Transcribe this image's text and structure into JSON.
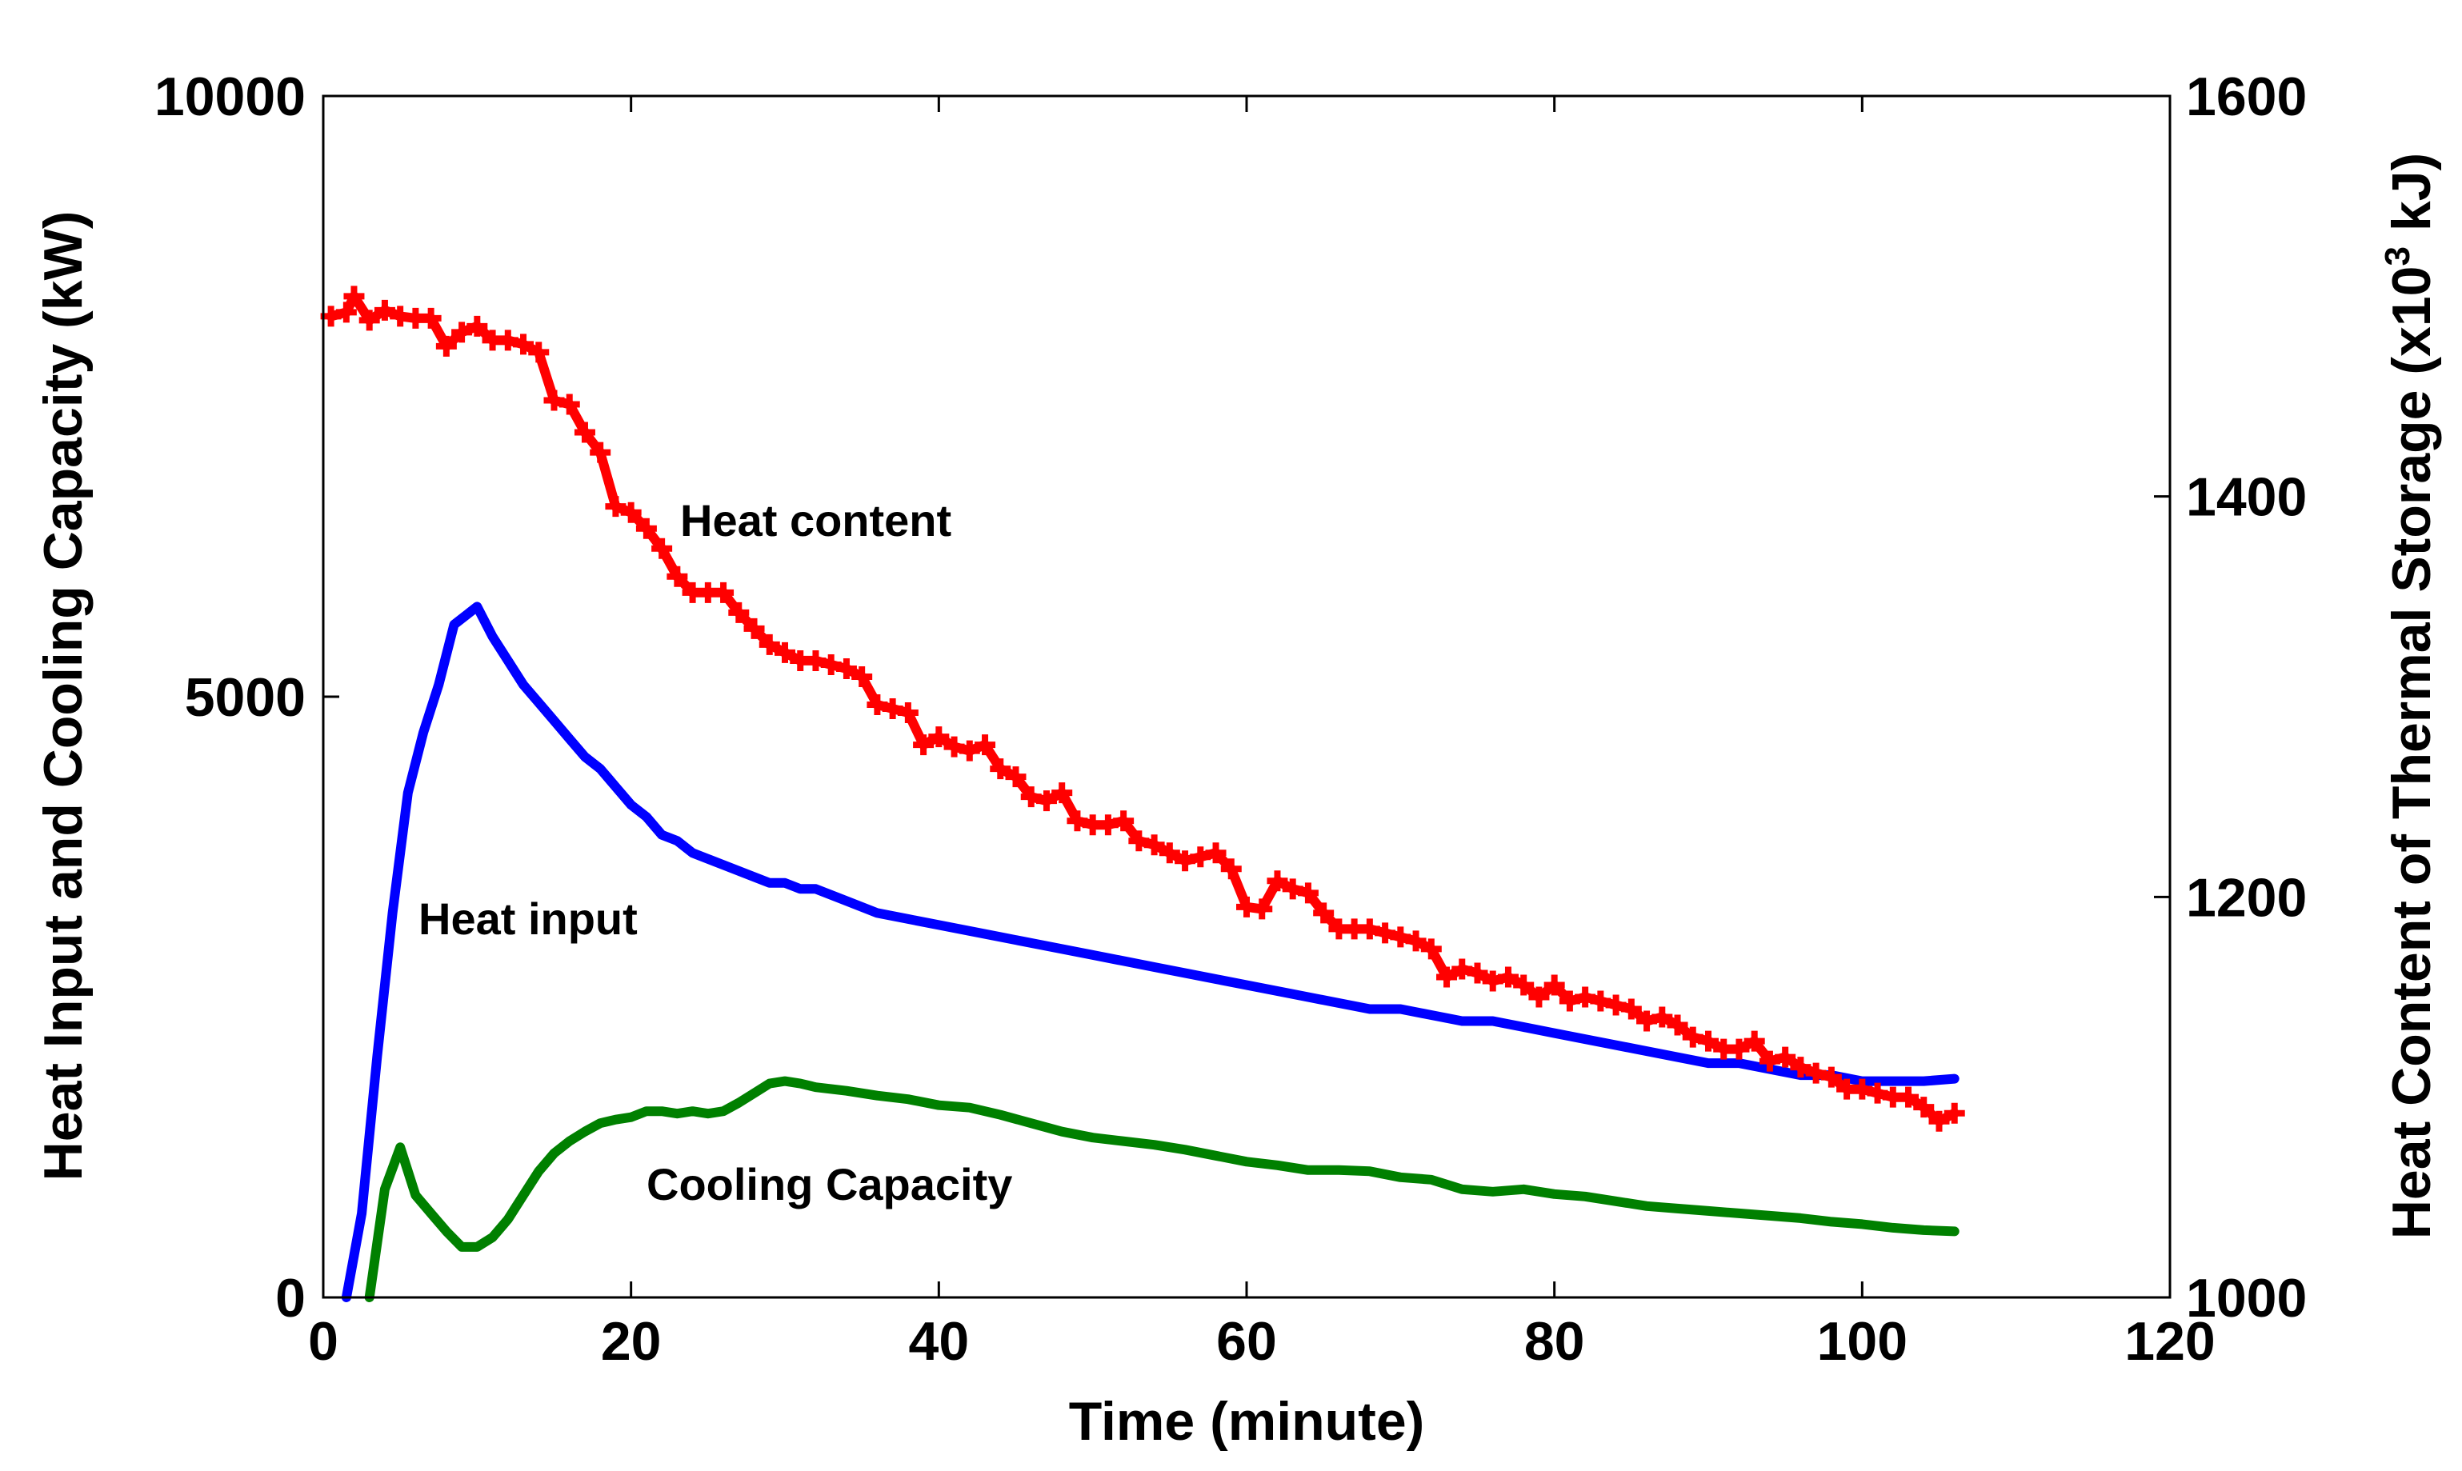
{
  "chart_data": {
    "type": "line",
    "title": "",
    "xlabel": "Time (minute)",
    "ylabel": "Heat Input and Cooling Capacity (kW)",
    "y2label_parts": [
      "Heat Content of Thermal Storage (x10",
      "3",
      " kJ)"
    ],
    "xlim": [
      0,
      120
    ],
    "ylim": [
      0,
      10000
    ],
    "y2lim": [
      1000,
      1600
    ],
    "xticks": [
      0,
      20,
      40,
      60,
      80,
      100,
      120
    ],
    "yticks": [
      0,
      5000,
      10000
    ],
    "y2ticks": [
      1000,
      1200,
      1400,
      1600
    ],
    "xtick_labels": [
      "0",
      "20",
      "40",
      "60",
      "80",
      "100",
      "120"
    ],
    "ytick_labels": [
      "0",
      "5000",
      "10000"
    ],
    "y2tick_labels": [
      "1000",
      "1200",
      "1400",
      "1600"
    ],
    "grid": false,
    "annotations": {
      "heat_content": "Heat content",
      "heat_input": "Heat input",
      "cooling_capacity": "Cooling Capacity"
    },
    "series": [
      {
        "name": "Heat input",
        "axis": "left",
        "color": "#0000ff",
        "marker": "none",
        "x": [
          1.5,
          2.5,
          3.5,
          4.5,
          5.5,
          6.5,
          7.5,
          8.5,
          9.5,
          10,
          11,
          12,
          13,
          14,
          15,
          16,
          17,
          18,
          19,
          20,
          21,
          22,
          23,
          24,
          25,
          26,
          27,
          28,
          29,
          30,
          31,
          32,
          34,
          36,
          38,
          40,
          42,
          44,
          46,
          48,
          50,
          52,
          54,
          56,
          58,
          60,
          62,
          64,
          66,
          68,
          70,
          72,
          74,
          76,
          78,
          80,
          82,
          84,
          86,
          88,
          90,
          92,
          94,
          96,
          98,
          100,
          102,
          104,
          106
        ],
        "y": [
          0,
          700,
          2000,
          3200,
          4200,
          4700,
          5100,
          5600,
          5700,
          5750,
          5500,
          5300,
          5100,
          4950,
          4800,
          4650,
          4500,
          4400,
          4250,
          4100,
          4000,
          3850,
          3800,
          3700,
          3650,
          3600,
          3550,
          3500,
          3450,
          3450,
          3400,
          3400,
          3300,
          3200,
          3150,
          3100,
          3050,
          3000,
          2950,
          2900,
          2850,
          2800,
          2750,
          2700,
          2650,
          2600,
          2550,
          2500,
          2450,
          2400,
          2400,
          2350,
          2300,
          2300,
          2250,
          2200,
          2150,
          2100,
          2050,
          2000,
          1950,
          1950,
          1900,
          1850,
          1850,
          1800,
          1800,
          1800,
          1820
        ]
      },
      {
        "name": "Cooling Capacity",
        "axis": "left",
        "color": "#008000",
        "marker": "none",
        "x": [
          3,
          4,
          5,
          6,
          7,
          8,
          9,
          10,
          11,
          12,
          13,
          14,
          15,
          16,
          17,
          18,
          19,
          20,
          21,
          22,
          23,
          24,
          25,
          26,
          27,
          28,
          29,
          30,
          31,
          32,
          34,
          36,
          38,
          40,
          42,
          44,
          46,
          48,
          50,
          52,
          54,
          56,
          58,
          60,
          62,
          64,
          66,
          68,
          70,
          72,
          74,
          76,
          78,
          80,
          82,
          84,
          86,
          88,
          90,
          92,
          94,
          96,
          98,
          100,
          102,
          104,
          106
        ],
        "y": [
          0,
          900,
          1250,
          850,
          700,
          550,
          420,
          420,
          500,
          650,
          850,
          1050,
          1200,
          1300,
          1380,
          1450,
          1480,
          1500,
          1550,
          1550,
          1530,
          1550,
          1530,
          1550,
          1620,
          1700,
          1780,
          1800,
          1780,
          1750,
          1720,
          1680,
          1650,
          1600,
          1580,
          1520,
          1450,
          1380,
          1330,
          1300,
          1270,
          1230,
          1180,
          1130,
          1100,
          1060,
          1060,
          1050,
          1000,
          980,
          900,
          880,
          900,
          860,
          840,
          800,
          760,
          740,
          720,
          700,
          680,
          660,
          630,
          610,
          580,
          560,
          550
        ]
      },
      {
        "name": "Heat content",
        "axis": "right",
        "color": "#ff0000",
        "marker": "plus",
        "x": [
          0.5,
          1.5,
          2,
          3,
          4,
          5,
          6,
          7,
          8,
          9,
          10,
          11,
          12,
          13,
          14,
          15,
          16,
          17,
          18,
          19,
          20,
          21,
          22,
          23,
          24,
          25,
          26,
          27,
          28,
          29,
          30,
          31,
          32,
          33,
          34,
          35,
          36,
          37,
          38,
          39,
          40,
          41,
          42,
          43,
          44,
          45,
          46,
          47,
          48,
          49,
          50,
          51,
          52,
          53,
          54,
          55,
          56,
          57,
          58,
          59,
          60,
          61,
          62,
          63,
          64,
          65,
          66,
          67,
          68,
          69,
          70,
          71,
          72,
          73,
          74,
          75,
          76,
          77,
          78,
          79,
          80,
          81,
          82,
          83,
          84,
          85,
          86,
          87,
          88,
          89,
          90,
          91,
          92,
          93,
          94,
          95,
          96,
          97,
          98,
          99,
          100,
          101,
          102,
          103,
          104,
          105,
          106
        ],
        "y": [
          1490,
          1492,
          1500,
          1488,
          1493,
          1490,
          1489,
          1489,
          1475,
          1482,
          1485,
          1478,
          1478,
          1476,
          1472,
          1448,
          1446,
          1432,
          1422,
          1395,
          1392,
          1384,
          1374,
          1360,
          1352,
          1352,
          1352,
          1342,
          1334,
          1326,
          1322,
          1318,
          1318,
          1316,
          1314,
          1310,
          1296,
          1294,
          1292,
          1276,
          1280,
          1275,
          1273,
          1276,
          1264,
          1260,
          1250,
          1248,
          1252,
          1238,
          1236,
          1236,
          1238,
          1228,
          1226,
          1222,
          1218,
          1220,
          1222,
          1214,
          1195,
          1194,
          1208,
          1204,
          1202,
          1192,
          1184,
          1184,
          1184,
          1182,
          1180,
          1178,
          1174,
          1160,
          1164,
          1162,
          1158,
          1160,
          1156,
          1150,
          1156,
          1148,
          1150,
          1148,
          1146,
          1144,
          1138,
          1140,
          1136,
          1130,
          1128,
          1124,
          1124,
          1128,
          1118,
          1120,
          1115,
          1112,
          1110,
          1104,
          1104,
          1102,
          1100,
          1100,
          1095,
          1088,
          1092
        ]
      }
    ]
  }
}
